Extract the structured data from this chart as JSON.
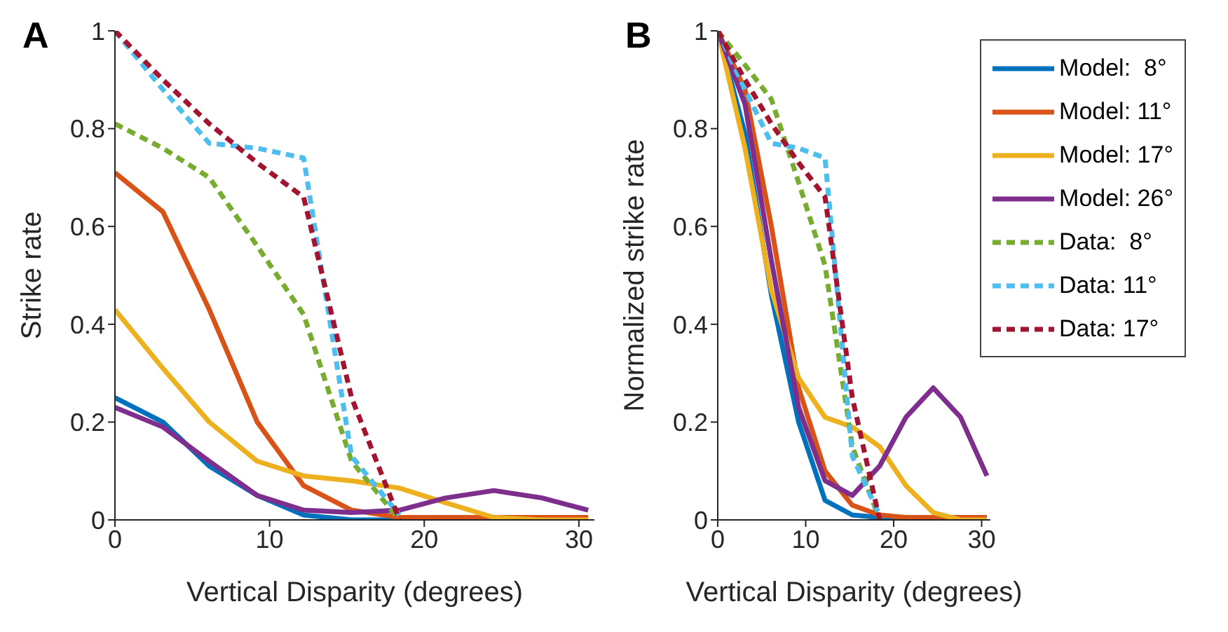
{
  "chart_data": [
    {
      "type": "line",
      "title": "A",
      "xlabel": "Vertical Disparity (degrees)",
      "ylabel": "Strike rate",
      "xlim": [
        0,
        31
      ],
      "xticks": [
        0,
        10,
        20,
        30
      ],
      "ylim": [
        0,
        1
      ],
      "yticks": [
        0,
        0.2,
        0.4,
        0.6,
        0.8,
        1
      ],
      "grid": false,
      "legend": false,
      "marker": "none",
      "series": [
        {
          "color": "#0072bd",
          "line_style": "solid",
          "x": [
            0,
            3.1,
            6.1,
            9.2,
            12.2,
            15.3,
            18.4,
            21.4
          ],
          "values": [
            0.25,
            0.2,
            0.11,
            0.05,
            0.01,
            0,
            0,
            0
          ]
        },
        {
          "color": "#d95319",
          "line_style": "solid",
          "x": [
            0,
            3.1,
            6.1,
            9.2,
            12.2,
            15.3,
            18.4,
            21.4,
            24.5,
            27.6,
            30.6
          ],
          "values": [
            0.71,
            0.63,
            0.43,
            0.2,
            0.07,
            0.02,
            0.005,
            0.005,
            0.005,
            0.005,
            0.005
          ]
        },
        {
          "color": "#edb120",
          "line_style": "solid",
          "x": [
            0,
            3.1,
            6.1,
            9.2,
            12.2,
            15.3,
            18.4,
            21.4,
            24.5,
            27.6,
            30.6
          ],
          "values": [
            0.43,
            0.31,
            0.2,
            0.12,
            0.09,
            0.08,
            0.065,
            0.035,
            0.005,
            0,
            0
          ]
        },
        {
          "color": "#7e2f8e",
          "line_style": "solid",
          "x": [
            0,
            3.1,
            6.1,
            9.2,
            12.2,
            15.3,
            18.4,
            21.4,
            24.5,
            27.6,
            30.6
          ],
          "values": [
            0.23,
            0.19,
            0.12,
            0.05,
            0.02,
            0.015,
            0.02,
            0.045,
            0.06,
            0.045,
            0.02
          ]
        },
        {
          "color": "#77ac30",
          "line_style": "dashed",
          "x": [
            0,
            3.1,
            6.1,
            9.2,
            12.2,
            15.3,
            18.4
          ],
          "values": [
            0.81,
            0.76,
            0.7,
            0.56,
            0.42,
            0.12,
            0
          ]
        },
        {
          "color": "#4dbeee",
          "line_style": "dashed",
          "x": [
            0,
            3.1,
            6.1,
            9.2,
            12.2,
            15.3,
            18.4
          ],
          "values": [
            1,
            0.88,
            0.77,
            0.76,
            0.74,
            0.13,
            0.01
          ]
        },
        {
          "color": "#a2142f",
          "line_style": "dashed",
          "x": [
            0,
            3.1,
            6.1,
            9.2,
            12.2,
            15.3,
            18.4
          ],
          "values": [
            1,
            0.9,
            0.81,
            0.73,
            0.66,
            0.25,
            0
          ]
        }
      ]
    },
    {
      "type": "line",
      "title": "B",
      "xlabel": "Vertical Disparity (degrees)",
      "ylabel": "Normalized strike rate",
      "xlim": [
        0,
        31
      ],
      "xticks": [
        0,
        10,
        20,
        30
      ],
      "ylim": [
        0,
        1
      ],
      "yticks": [
        0,
        0.2,
        0.4,
        0.6,
        0.8,
        1
      ],
      "grid": false,
      "legend": "top right",
      "marker": "none",
      "series": [
        {
          "name": "Model:  8°",
          "color": "#0072bd",
          "line_style": "solid",
          "x": [
            0,
            3.1,
            6.1,
            9.2,
            12.2,
            15.3,
            18.4,
            21.4,
            24.5
          ],
          "values": [
            1,
            0.79,
            0.46,
            0.2,
            0.04,
            0.01,
            0.005,
            0,
            0
          ]
        },
        {
          "name": "Model: 11°",
          "color": "#d95319",
          "line_style": "solid",
          "x": [
            0,
            3.1,
            6.1,
            9.2,
            12.2,
            15.3,
            18.4,
            21.4,
            24.5,
            27.6,
            30.6
          ],
          "values": [
            1,
            0.88,
            0.6,
            0.27,
            0.1,
            0.03,
            0.01,
            0.005,
            0.005,
            0.005,
            0.005
          ]
        },
        {
          "name": "Model: 17°",
          "color": "#edb120",
          "line_style": "solid",
          "x": [
            0,
            3.1,
            6.1,
            9.2,
            12.2,
            15.3,
            18.4,
            21.4,
            24.5,
            27.6,
            30.6
          ],
          "values": [
            1,
            0.76,
            0.47,
            0.29,
            0.21,
            0.19,
            0.15,
            0.07,
            0.015,
            0,
            0
          ]
        },
        {
          "name": "Model: 26°",
          "color": "#7e2f8e",
          "line_style": "solid",
          "x": [
            0,
            3.1,
            6.1,
            9.2,
            12.2,
            15.3,
            18.4,
            21.4,
            24.5,
            27.6,
            30.6
          ],
          "values": [
            1,
            0.85,
            0.53,
            0.23,
            0.08,
            0.05,
            0.11,
            0.21,
            0.27,
            0.21,
            0.09
          ]
        },
        {
          "name": "Data:  8°",
          "color": "#77ac30",
          "line_style": "dashed",
          "x": [
            0,
            3.1,
            6.1,
            9.2,
            12.2,
            15.3,
            18.4
          ],
          "values": [
            1,
            0.93,
            0.86,
            0.69,
            0.52,
            0.15,
            0
          ]
        },
        {
          "name": "Data: 11°",
          "color": "#4dbeee",
          "line_style": "dashed",
          "x": [
            0,
            3.1,
            6.1,
            9.2,
            12.2,
            15.3,
            18.4
          ],
          "values": [
            1,
            0.88,
            0.77,
            0.76,
            0.74,
            0.13,
            0.01
          ]
        },
        {
          "name": "Data: 17°",
          "color": "#a2142f",
          "line_style": "dashed",
          "x": [
            0,
            3.1,
            6.1,
            9.2,
            12.2,
            15.3,
            18.4
          ],
          "values": [
            1,
            0.9,
            0.81,
            0.73,
            0.66,
            0.25,
            0
          ]
        }
      ]
    }
  ]
}
